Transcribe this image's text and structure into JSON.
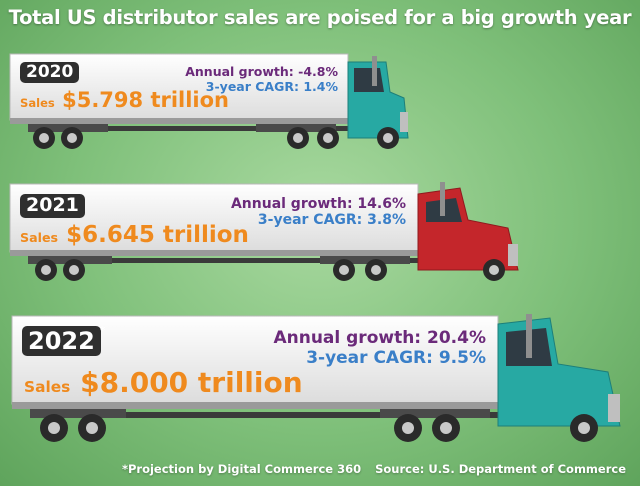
{
  "title": "Total US distributor sales are poised for a big growth year",
  "footer": {
    "projection_note": "*Projection by Digital Commerce 360",
    "source": "Source: U.S. Department of Commerce"
  },
  "colors": {
    "annual_growth_text": "#6b2a7a",
    "cagr_text": "#3a7fc8",
    "sales_text": "#ef8a1e",
    "cab_teal": "#27a9a3",
    "cab_red": "#c4262b",
    "background": "#7fc07a"
  },
  "chart_data": {
    "type": "bar",
    "title": "Total US distributor sales are poised for a big growth year",
    "categories": [
      "2020",
      "2021",
      "2022"
    ],
    "series": [
      {
        "name": "Sales",
        "unit": "trillion",
        "values": [
          5.798,
          6.645,
          8.0
        ]
      },
      {
        "name": "Annual growth",
        "unit": "%",
        "values": [
          -4.8,
          14.6,
          20.4
        ]
      },
      {
        "name": "3-year CAGR",
        "unit": "%",
        "values": [
          1.4,
          3.8,
          9.5
        ]
      }
    ],
    "projected": [
      false,
      false,
      true
    ]
  },
  "trucks": [
    {
      "year": "2020",
      "star": "",
      "annual_growth": "Annual growth: -4.8%",
      "cagr": "3-year CAGR: 1.4%",
      "sales_label": "Sales",
      "sales_value": "$5.798 trillion",
      "cab_color": "#27a9a3",
      "icon": "semi-truck-icon"
    },
    {
      "year": "2021",
      "star": "",
      "annual_growth": "Annual growth: 14.6%",
      "cagr": "3-year CAGR: 3.8%",
      "sales_label": "Sales",
      "sales_value": "$6.645 trillion",
      "cab_color": "#c4262b",
      "icon": "semi-truck-icon"
    },
    {
      "year": "2022",
      "star": "*",
      "annual_growth": "Annual growth: 20.4%",
      "cagr": "3-year CAGR: 9.5%",
      "sales_label": "Sales",
      "sales_value": "$8.000 trillion",
      "cab_color": "#27a9a3",
      "icon": "semi-truck-icon"
    }
  ]
}
